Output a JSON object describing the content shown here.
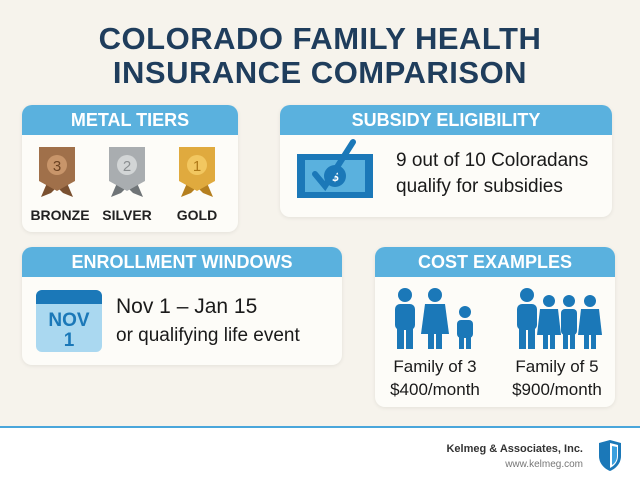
{
  "title": {
    "line1": "COLORADO FAMILY HEALTH",
    "line2": "INSURANCE COMPARISON"
  },
  "metal_tiers": {
    "heading": "METAL TIERS",
    "tiers": [
      {
        "rank": "3",
        "label": "BRONZE",
        "color": "#a0704a"
      },
      {
        "rank": "2",
        "label": "SILVER",
        "color": "#a9adb0"
      },
      {
        "rank": "1",
        "label": "GOLD",
        "color": "#e0aa3e"
      }
    ]
  },
  "subsidy": {
    "heading": "SUBSIDY ELIGIBILITY",
    "line1": "9 out of 10 Coloradans",
    "line2": "qualify for subsidies",
    "icon": "money-check-icon"
  },
  "enrollment": {
    "heading": "ENROLLMENT WINDOWS",
    "calendar_month": "NOV",
    "calendar_day": "1",
    "dates": "Nov 1 – Jan 15",
    "event": "or qualifying life event"
  },
  "cost": {
    "heading": "COST EXAMPLES",
    "examples": [
      {
        "family": "Family of 3",
        "price": "$400/month"
      },
      {
        "family": "Family of 5",
        "price": "$900/month"
      }
    ]
  },
  "footer": {
    "company": "Kelmeg & Associates, Inc.",
    "url": "www.kelmeg.com"
  },
  "colors": {
    "accent": "#5ab1de",
    "title": "#1f3d5c",
    "icon_blue": "#1b78b8"
  }
}
